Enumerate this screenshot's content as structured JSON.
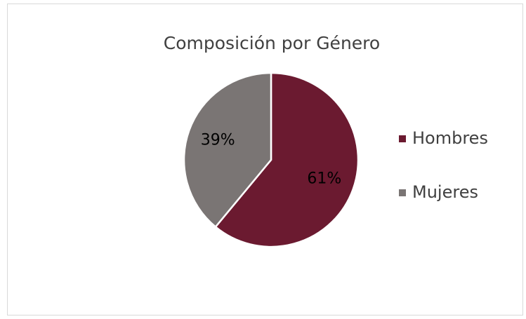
{
  "chart_data": {
    "type": "pie",
    "title": "Composición por Género",
    "categories": [
      "Hombres",
      "Mujeres"
    ],
    "values": [
      61,
      39
    ],
    "value_labels": [
      "61%",
      "39%"
    ],
    "colors": [
      "#6b1a30",
      "#7a7574"
    ],
    "legend": "right"
  }
}
